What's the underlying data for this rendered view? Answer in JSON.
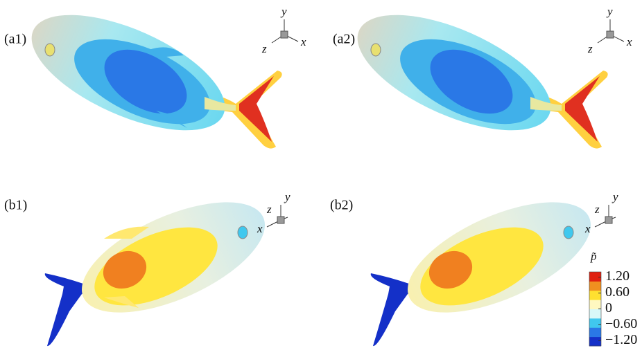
{
  "panels": [
    {
      "label": "(a1)",
      "axes": [
        "y",
        "z",
        "x"
      ]
    },
    {
      "label": "(a2)",
      "axes": [
        "y",
        "z",
        "x"
      ]
    },
    {
      "label": "(b1)",
      "axes": [
        "y",
        "z",
        "x"
      ]
    },
    {
      "label": "(b2)",
      "axes": [
        "y",
        "z",
        "x"
      ]
    }
  ],
  "colorbar": {
    "title": "p̃",
    "lim": [
      -1.4,
      1.4
    ],
    "colors": [
      "#1430c8",
      "#2a78e6",
      "#40c8ee",
      "#d8f8f8",
      "#fff8c0",
      "#ffe030",
      "#f09020",
      "#e02010"
    ],
    "ticks": [
      {
        "value": 1.2,
        "label": "1.20"
      },
      {
        "value": 0.6,
        "label": "0.60"
      },
      0,
      {
        "value": -0.6,
        "label": "−0.60"
      },
      {
        "value": -1.2,
        "label": "−1.20"
      }
    ]
  }
}
